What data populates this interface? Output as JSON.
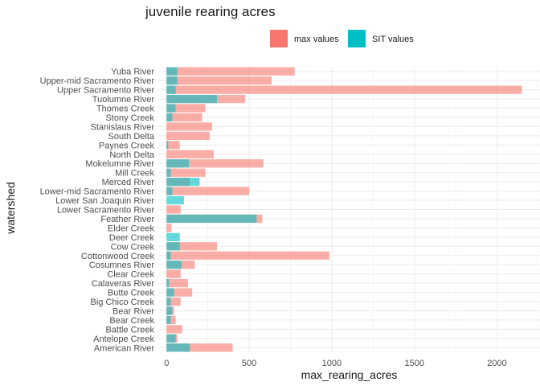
{
  "chart_data": {
    "type": "bar",
    "orientation": "horizontal",
    "title": "juvenile rearing acres",
    "xlabel": "max_rearing_acres",
    "ylabel": "watershed",
    "xlim": [
      -50,
      2260
    ],
    "xticks": [
      0,
      500,
      1000,
      1500,
      2000
    ],
    "grid": true,
    "legend_position": "top",
    "categories": [
      "Yuba River",
      "Upper-mid Sacramento River",
      "Upper Sacramento River",
      "Tuolumne River",
      "Thomes Creek",
      "Stony Creek",
      "Stanislaus River",
      "South Delta",
      "Paynes Creek",
      "North Delta",
      "Mokelumne River",
      "Mill Creek",
      "Merced River",
      "Lower-mid Sacramento River",
      "Lower San Joaquin River",
      "Lower Sacramento River",
      "Feather River",
      "Elder Creek",
      "Deer Creek",
      "Cow Creek",
      "Cottonwood Creek",
      "Cosumnes River",
      "Clear Creek",
      "Calaveras River",
      "Butte Creek",
      "Big Chico Creek",
      "Bear River",
      "Bear Creek",
      "Battle Creek",
      "Antelope Creek",
      "American River"
    ],
    "series": [
      {
        "name": "max values",
        "color": "#F8766D",
        "values": [
          775,
          635,
          2150,
          475,
          235,
          215,
          275,
          260,
          80,
          285,
          585,
          235,
          140,
          500,
          0,
          85,
          580,
          30,
          0,
          305,
          985,
          170,
          85,
          130,
          155,
          85,
          45,
          55,
          95,
          65,
          400
        ]
      },
      {
        "name": "SIT values",
        "color": "#00BFC4",
        "values": [
          65,
          65,
          55,
          305,
          55,
          35,
          0,
          0,
          10,
          0,
          135,
          25,
          200,
          35,
          105,
          0,
          545,
          0,
          80,
          80,
          25,
          90,
          0,
          15,
          45,
          25,
          35,
          25,
          0,
          55,
          140
        ]
      }
    ]
  }
}
